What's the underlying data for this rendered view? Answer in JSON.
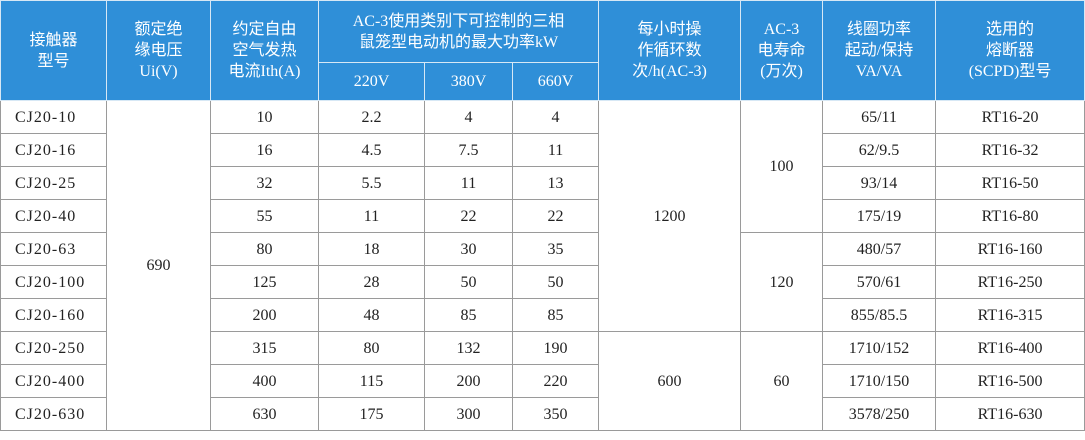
{
  "table": {
    "header_top": [
      "接触器\n型号",
      "额定绝\n缘电压\nUi(V)",
      "约定自由\n空气发热\n电流Ith(A)",
      "AC-3使用类别下可控制的三相\n鼠笼型电动机的最大功率kW",
      "每小时操\n作循环数\n次/h(AC-3)",
      "AC-3\n电寿命\n(万次)",
      "线圈功率\n起动/保持\nVA/VA",
      "选用的\n熔断器\n(SCPD)型号"
    ],
    "header_sub": [
      "220V",
      "380V",
      "660V"
    ],
    "rows": [
      [
        "CJ20-10",
        "10",
        "2.2",
        "4",
        "4",
        "65/11",
        "RT16-20"
      ],
      [
        "CJ20-16",
        "16",
        "4.5",
        "7.5",
        "11",
        "62/9.5",
        "RT16-32"
      ],
      [
        "CJ20-25",
        "32",
        "5.5",
        "11",
        "13",
        "93/14",
        "RT16-50"
      ],
      [
        "CJ20-40",
        "55",
        "11",
        "22",
        "22",
        "175/19",
        "RT16-80"
      ],
      [
        "CJ20-63",
        "80",
        "18",
        "30",
        "35",
        "480/57",
        "RT16-160"
      ],
      [
        "CJ20-100",
        "125",
        "28",
        "50",
        "50",
        "570/61",
        "RT16-250"
      ],
      [
        "CJ20-160",
        "200",
        "48",
        "85",
        "85",
        "855/85.5",
        "RT16-315"
      ],
      [
        "CJ20-250",
        "315",
        "80",
        "132",
        "190",
        "1710/152",
        "RT16-400"
      ],
      [
        "CJ20-400",
        "400",
        "115",
        "200",
        "220",
        "1710/150",
        "RT16-500"
      ],
      [
        "CJ20-630",
        "630",
        "175",
        "300",
        "350",
        "3578/250",
        "RT16-630"
      ]
    ],
    "ui_voltage": [
      "690"
    ],
    "cycles": [
      "1200",
      "600"
    ],
    "life": [
      "100",
      "120",
      "60"
    ]
  }
}
